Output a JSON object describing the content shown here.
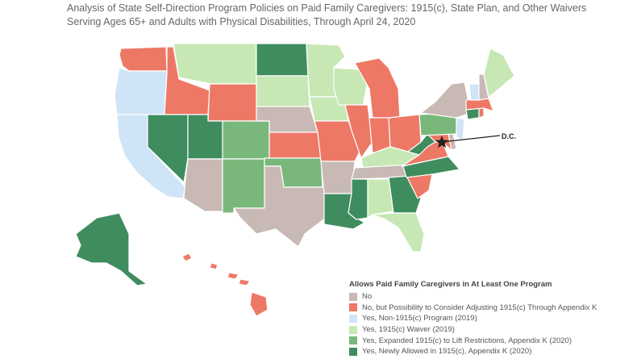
{
  "title": {
    "line1": "Analysis of State Self-Direction Program Policies on Paid Family Caregivers:  1915(c), State Plan, and Other Waivers",
    "line2": "Serving Ages 65+ and Adults with Physical Disabilities, Through April 24, 2020"
  },
  "map": {
    "dc_label": "D.C.",
    "states": [
      {
        "name": "WA",
        "category": "no_but"
      },
      {
        "name": "OR",
        "category": "non1915"
      },
      {
        "name": "CA",
        "category": "non1915"
      },
      {
        "name": "ID",
        "category": "no_but"
      },
      {
        "name": "NV",
        "category": "new"
      },
      {
        "name": "MT",
        "category": "waiver"
      },
      {
        "name": "WY",
        "category": "no_but"
      },
      {
        "name": "UT",
        "category": "new"
      },
      {
        "name": "CO",
        "category": "expanded"
      },
      {
        "name": "AZ",
        "category": "no"
      },
      {
        "name": "NM",
        "category": "expanded"
      },
      {
        "name": "ND",
        "category": "new"
      },
      {
        "name": "SD",
        "category": "waiver"
      },
      {
        "name": "NE",
        "category": "no"
      },
      {
        "name": "KS",
        "category": "no_but"
      },
      {
        "name": "OK",
        "category": "expanded"
      },
      {
        "name": "TX",
        "category": "no"
      },
      {
        "name": "MN",
        "category": "waiver"
      },
      {
        "name": "IA",
        "category": "waiver"
      },
      {
        "name": "MO",
        "category": "no_but"
      },
      {
        "name": "AR",
        "category": "no"
      },
      {
        "name": "LA",
        "category": "new"
      },
      {
        "name": "WI",
        "category": "waiver"
      },
      {
        "name": "IL",
        "category": "no_but"
      },
      {
        "name": "MI",
        "category": "no_but"
      },
      {
        "name": "IN",
        "category": "no_but"
      },
      {
        "name": "OH",
        "category": "no_but"
      },
      {
        "name": "KY",
        "category": "waiver"
      },
      {
        "name": "TN",
        "category": "no"
      },
      {
        "name": "MS",
        "category": "new"
      },
      {
        "name": "AL",
        "category": "waiver"
      },
      {
        "name": "GA",
        "category": "new"
      },
      {
        "name": "FL",
        "category": "waiver"
      },
      {
        "name": "SC",
        "category": "no_but"
      },
      {
        "name": "NC",
        "category": "new"
      },
      {
        "name": "VA",
        "category": "no_but"
      },
      {
        "name": "WV",
        "category": "new"
      },
      {
        "name": "MD",
        "category": "no_but"
      },
      {
        "name": "DE",
        "category": "no"
      },
      {
        "name": "PA",
        "category": "expanded"
      },
      {
        "name": "NJ",
        "category": "non1915"
      },
      {
        "name": "NY",
        "category": "no"
      },
      {
        "name": "CT",
        "category": "new"
      },
      {
        "name": "RI",
        "category": "no_but"
      },
      {
        "name": "MA",
        "category": "no_but"
      },
      {
        "name": "VT",
        "category": "non1915"
      },
      {
        "name": "NH",
        "category": "no"
      },
      {
        "name": "ME",
        "category": "waiver"
      },
      {
        "name": "AK",
        "category": "new"
      },
      {
        "name": "HI",
        "category": "no_but"
      }
    ]
  },
  "legend": {
    "title": "Allows Paid Family Caregivers in At Least One Program",
    "items": [
      {
        "key": "no",
        "label": "No",
        "color": "#c9b9b5"
      },
      {
        "key": "no_but",
        "label": "No, but Possibility to Consider Adjusting 1915(c) Through Appendix K",
        "color": "#ee7866"
      },
      {
        "key": "non1915",
        "label": "Yes, Non-1915(c) Program (2019)",
        "color": "#cfe4f6"
      },
      {
        "key": "waiver",
        "label": "Yes, 1915(c) Waiver (2019)",
        "color": "#c7e8b5"
      },
      {
        "key": "expanded",
        "label": "Yes, Expanded 1915(c) to Lift Restrictions, Appendix K (2020)",
        "color": "#79b87a"
      },
      {
        "key": "new",
        "label": "Yes, Newly Allowed in 1915(c), Appendix K (2020)",
        "color": "#3f8d5f"
      }
    ]
  }
}
